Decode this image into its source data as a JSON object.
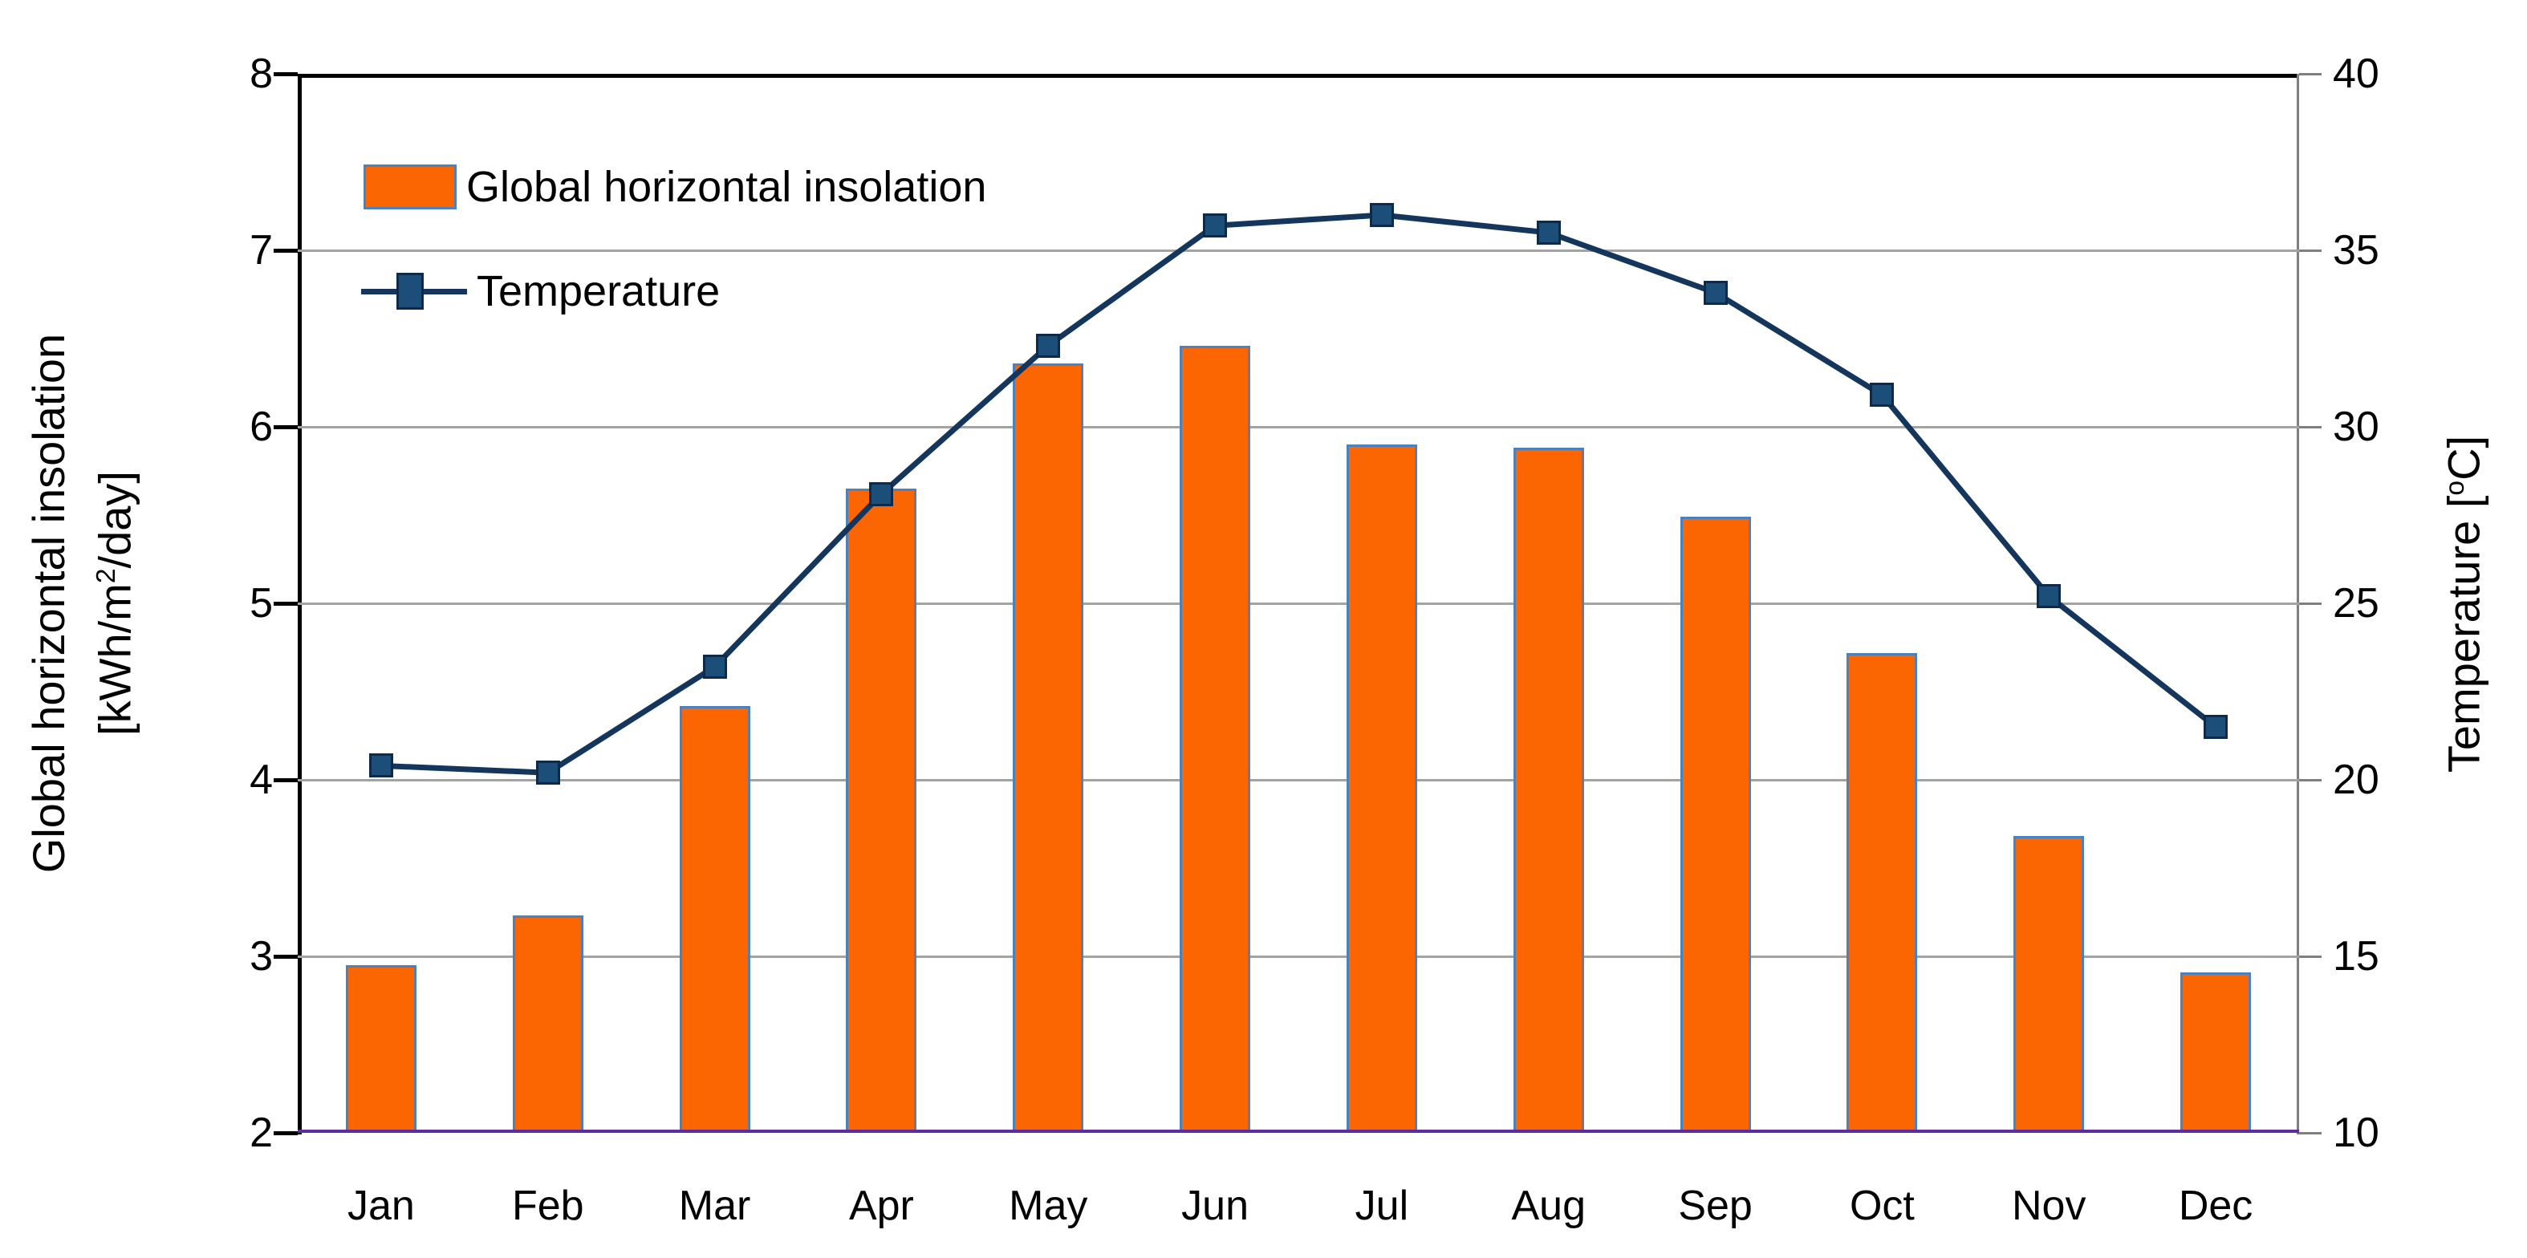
{
  "legend": {
    "bar_label": "Global horizontal insolation",
    "line_label": "Temperature"
  },
  "left_axis_title": {
    "line1": "Global horizontal insolation",
    "unit_pre": "[kWh/m",
    "unit_sup": "2",
    "unit_post": "/day]"
  },
  "right_axis_title": {
    "pre": "Temperature [",
    "sup": "o",
    "post": "C]"
  },
  "chart_data": {
    "type": "bar+line combo",
    "categories": [
      "Jan",
      "Feb",
      "Mar",
      "Apr",
      "May",
      "Jun",
      "Jul",
      "Aug",
      "Sep",
      "Oct",
      "Nov",
      "Dec"
    ],
    "series": [
      {
        "name": "Global horizontal insolation",
        "type": "bar",
        "axis": "left",
        "unit": "kWh/m2/day",
        "values": [
          2.95,
          3.23,
          4.42,
          5.65,
          6.36,
          6.46,
          5.9,
          5.88,
          5.49,
          4.72,
          3.68,
          2.91
        ],
        "fill_color": "#FB6602",
        "border_color": "#4E80BC"
      },
      {
        "name": "Temperature",
        "type": "line",
        "axis": "right",
        "unit": "°C",
        "values": [
          20.4,
          20.2,
          23.2,
          28.1,
          32.3,
          35.7,
          36.0,
          35.5,
          33.8,
          30.9,
          25.2,
          21.5
        ],
        "line_color": "#14365D",
        "marker": "square",
        "marker_fill": "#1B4E79",
        "marker_border": "#0D2A4A"
      }
    ],
    "left_axis": {
      "label": "Global horizontal insolation [kWh/m2/day]",
      "min": 2,
      "max": 8,
      "step": 1,
      "ticks": [
        "2",
        "3",
        "4",
        "5",
        "6",
        "7",
        "8"
      ]
    },
    "right_axis": {
      "label": "Temperature [oC]",
      "min": 10,
      "max": 40,
      "step": 5,
      "ticks": [
        "10",
        "15",
        "20",
        "25",
        "30",
        "35",
        "40"
      ]
    },
    "grid": true,
    "legend_position": "top-left",
    "colors": {
      "gridline": "#A3A3A3",
      "frame_top": "#000000",
      "axis_left": "#000000",
      "frame_right": "#7F7F7F",
      "baseline": "#5F2A9E",
      "text": "#000000"
    }
  }
}
